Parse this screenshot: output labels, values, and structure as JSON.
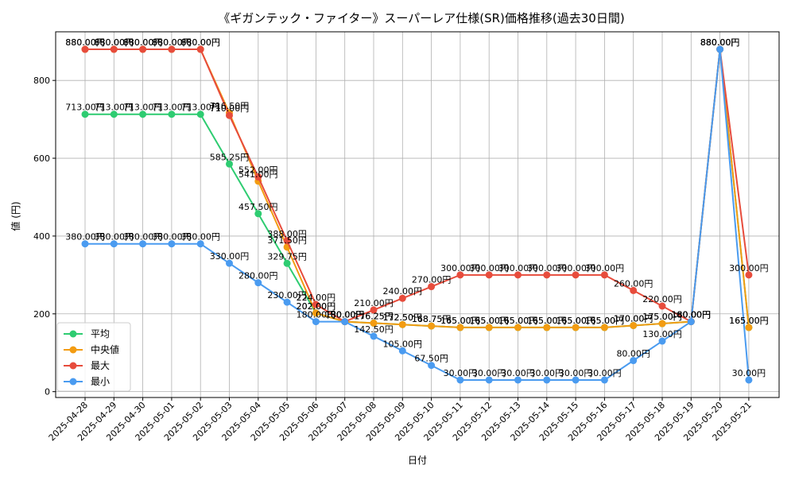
{
  "chart_data": {
    "type": "line",
    "title": "《ギガンテック・ファイター》スーパーレア仕様(SR)価格推移(過去30日間)",
    "xlabel": "日付",
    "ylabel": "値 (円)",
    "ylim": [
      -15,
      925
    ],
    "yticks": [
      0,
      200,
      400,
      600,
      800
    ],
    "grid": true,
    "legend_position": "bottom-left",
    "categories": [
      "2025-04-28",
      "2025-04-29",
      "2025-04-30",
      "2025-05-01",
      "2025-05-02",
      "2025-05-03",
      "2025-05-04",
      "2025-05-05",
      "2025-05-06",
      "2025-05-07",
      "2025-05-08",
      "2025-05-09",
      "2025-05-10",
      "2025-05-11",
      "2025-05-12",
      "2025-05-13",
      "2025-05-14",
      "2025-05-15",
      "2025-05-16",
      "2025-05-17",
      "2025-05-18",
      "2025-05-19",
      "2025-05-20",
      "2025-05-21"
    ],
    "series": [
      {
        "name": "平均",
        "color": "#2ecc71",
        "values": [
          713.0,
          713.0,
          713.0,
          713.0,
          713.0,
          585.25,
          457.5,
          329.75,
          202.0,
          180.0,
          176.25,
          172.5,
          168.75,
          165.0,
          165.0,
          165.0,
          165.0,
          165.0,
          165.0,
          170.0,
          175.0,
          180.0,
          880.0,
          165.0
        ]
      },
      {
        "name": "中央値",
        "color": "#f39c12",
        "values": [
          880.0,
          880.0,
          880.0,
          880.0,
          880.0,
          716.5,
          541.0,
          371.5,
          202.0,
          180.0,
          176.25,
          172.5,
          168.75,
          165.0,
          165.0,
          165.0,
          165.0,
          165.0,
          165.0,
          170.0,
          175.0,
          180.0,
          880.0,
          165.0
        ]
      },
      {
        "name": "最大",
        "color": "#e74c3c",
        "values": [
          880.0,
          880.0,
          880.0,
          880.0,
          880.0,
          710.0,
          552.0,
          388.0,
          224.0,
          180.0,
          210.0,
          240.0,
          270.0,
          300.0,
          300.0,
          300.0,
          300.0,
          300.0,
          300.0,
          260.0,
          220.0,
          180.0,
          880.0,
          300.0
        ]
      },
      {
        "name": "最小",
        "color": "#4a9bf0",
        "values": [
          380.0,
          380.0,
          380.0,
          380.0,
          380.0,
          330.0,
          280.0,
          230.0,
          180.0,
          180.0,
          142.5,
          105.0,
          67.5,
          30.0,
          30.0,
          30.0,
          30.0,
          30.0,
          30.0,
          80.0,
          130.0,
          180.0,
          880.0,
          30.0
        ]
      }
    ],
    "value_suffix": "円"
  }
}
